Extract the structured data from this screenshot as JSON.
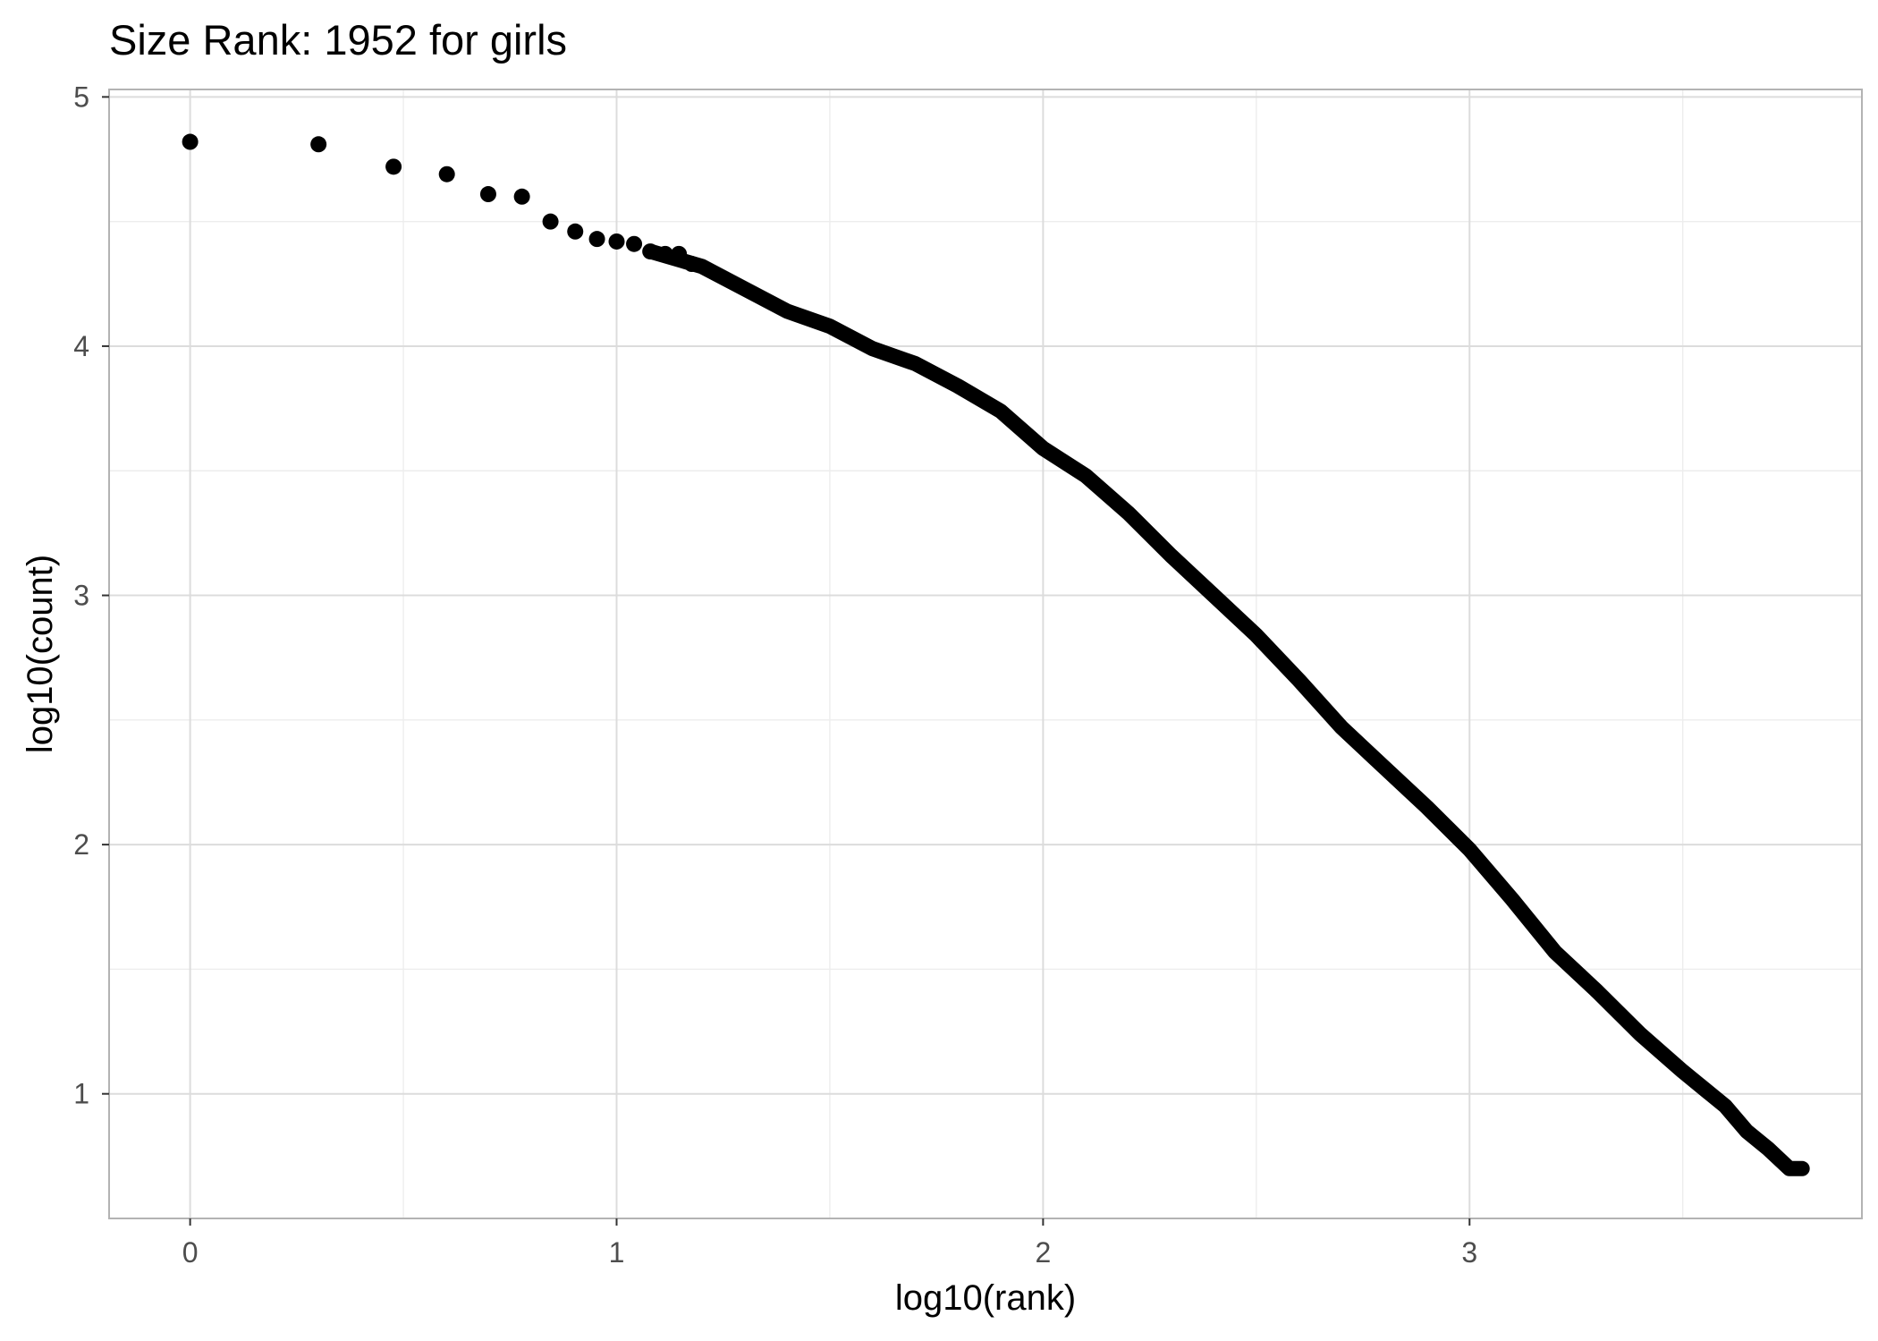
{
  "chart_data": {
    "type": "scatter",
    "title": "Size Rank: 1952 for girls",
    "xlabel": "log10(rank)",
    "ylabel": "log10(count)",
    "xlim": [
      -0.19,
      3.92
    ],
    "ylim": [
      0.5,
      5.03
    ],
    "x_ticks": [
      0,
      1,
      2,
      3
    ],
    "x_tick_labels": [
      "0",
      "1",
      "2",
      "3"
    ],
    "y_ticks": [
      1,
      2,
      3,
      4,
      5
    ],
    "y_tick_labels": [
      "1",
      "2",
      "3",
      "4",
      "5"
    ],
    "grid": true,
    "legend": "none",
    "point_color": "#000000",
    "grid_color": "#dcdcdc",
    "curve": {
      "x": [
        1.08,
        1.2,
        1.3,
        1.4,
        1.5,
        1.6,
        1.7,
        1.8,
        1.9,
        2.0,
        2.1,
        2.2,
        2.3,
        2.4,
        2.5,
        2.6,
        2.7,
        2.8,
        2.9,
        3.0,
        3.1,
        3.2,
        3.3,
        3.4,
        3.5,
        3.6,
        3.65,
        3.7,
        3.75,
        3.78
      ],
      "y": [
        4.38,
        4.32,
        4.23,
        4.14,
        4.08,
        3.99,
        3.93,
        3.84,
        3.74,
        3.59,
        3.48,
        3.33,
        3.16,
        3.0,
        2.84,
        2.66,
        2.47,
        2.31,
        2.15,
        1.98,
        1.78,
        1.57,
        1.41,
        1.24,
        1.09,
        0.95,
        0.85,
        0.78,
        0.7,
        0.7
      ]
    },
    "points": [
      {
        "x": 0.0,
        "y": 4.82
      },
      {
        "x": 0.301,
        "y": 4.81
      },
      {
        "x": 0.477,
        "y": 4.72
      },
      {
        "x": 0.602,
        "y": 4.69
      },
      {
        "x": 0.699,
        "y": 4.61
      },
      {
        "x": 0.778,
        "y": 4.6
      },
      {
        "x": 0.845,
        "y": 4.5
      },
      {
        "x": 0.903,
        "y": 4.46
      },
      {
        "x": 0.954,
        "y": 4.43
      },
      {
        "x": 1.0,
        "y": 4.42
      },
      {
        "x": 1.041,
        "y": 4.41
      },
      {
        "x": 1.079,
        "y": 4.38
      },
      {
        "x": 1.114,
        "y": 4.37
      },
      {
        "x": 1.146,
        "y": 4.37
      },
      {
        "x": 1.176,
        "y": 4.33
      }
    ]
  }
}
